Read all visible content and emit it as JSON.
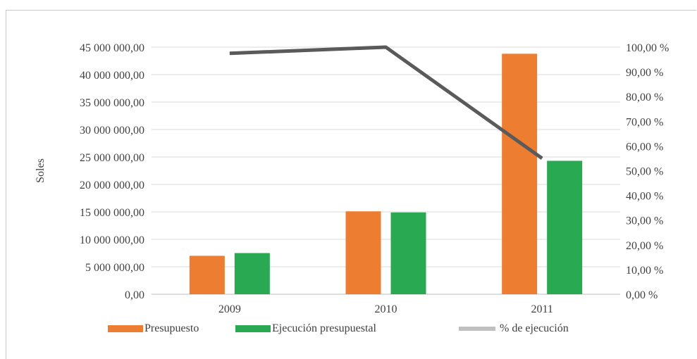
{
  "chart_data": {
    "type": "bar",
    "categories": [
      "2009",
      "2010",
      "2011"
    ],
    "series": [
      {
        "name": "Presupuesto",
        "kind": "bar",
        "axis": "left",
        "color": "#ED7D31",
        "values": [
          7000000,
          15100000,
          43800000
        ]
      },
      {
        "name": "Ejecución presupuestal",
        "kind": "bar",
        "axis": "left",
        "color": "#28A952",
        "values": [
          7500000,
          14900000,
          24300000
        ]
      },
      {
        "name": "% de ejecución",
        "kind": "line",
        "axis": "right",
        "color": "#5A5A5A",
        "legend_color": "#C0C0C0",
        "values": [
          97.5,
          100.0,
          55.0
        ]
      }
    ],
    "ylabel": "Soles",
    "ylim": [
      0,
      45000000
    ],
    "y_ticks": [
      "0,00",
      "5 000 000,00",
      "10 000 000,00",
      "15 000 000,00",
      "20 000 000,00",
      "25 000 000,00",
      "30 000 000,00",
      "35 000 000,00",
      "40 000 000,00",
      "45 000 000,00"
    ],
    "y2lim": [
      0,
      100
    ],
    "y2_ticks": [
      "0,00 %",
      "10,00 %",
      "20,00 %",
      "30,00 %",
      "40,00 %",
      "50,00 %",
      "60,00 %",
      "70,00 %",
      "80,00 %",
      "90,00 %",
      "100,00 %"
    ],
    "grid": true,
    "legend_position": "bottom"
  }
}
